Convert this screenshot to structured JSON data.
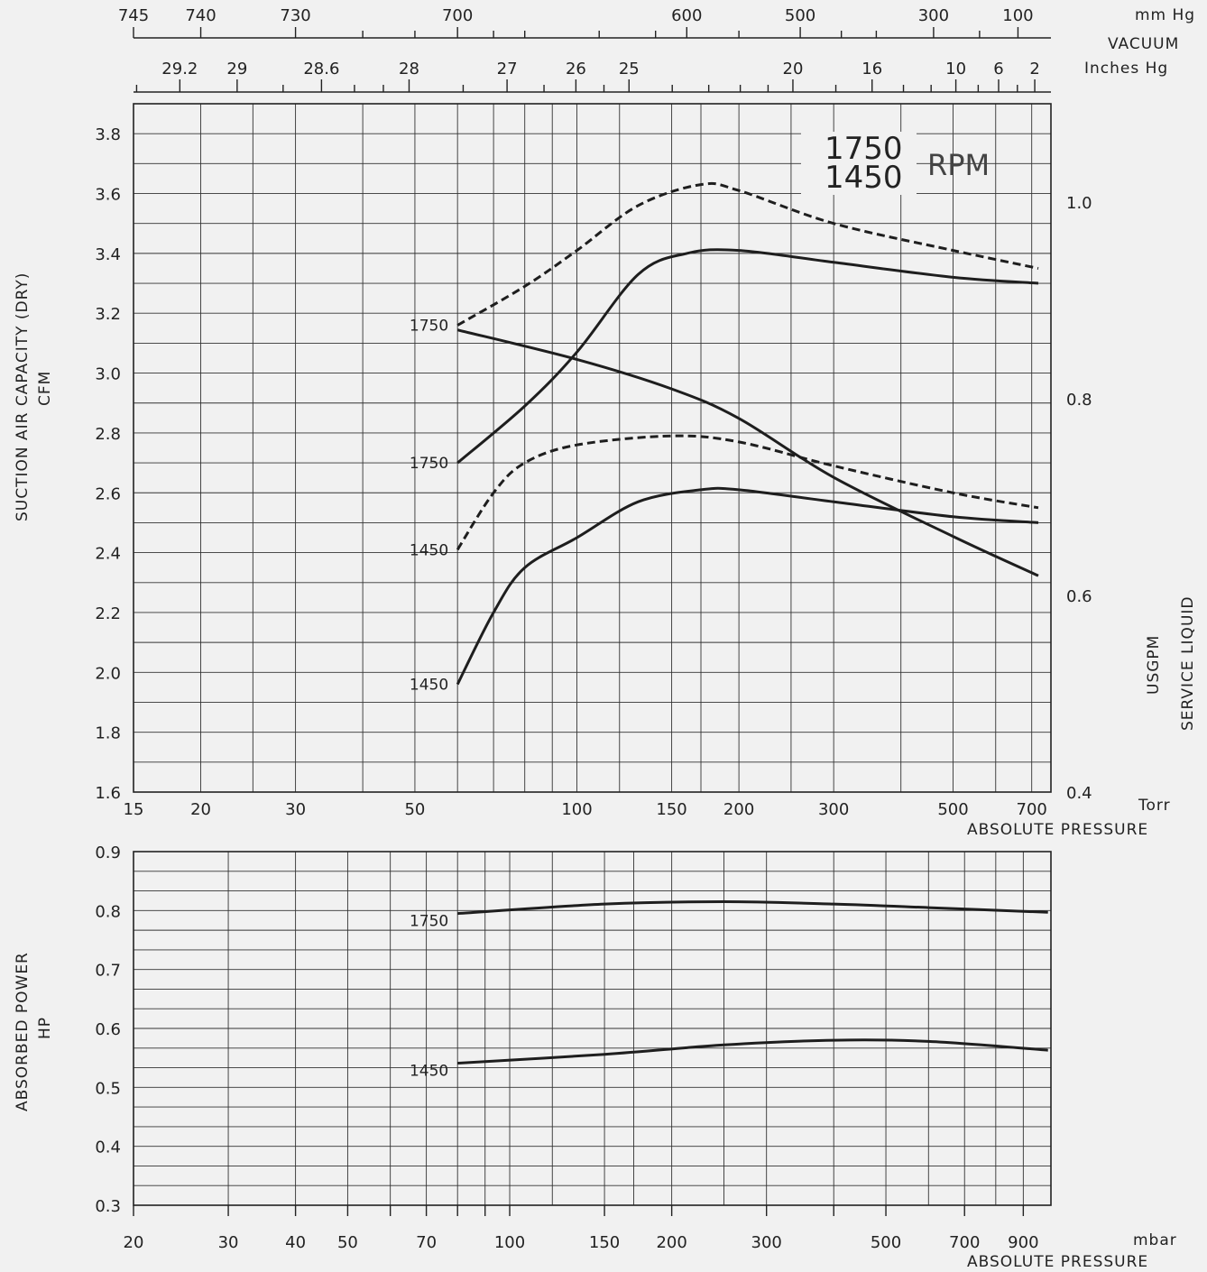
{
  "chart_data": [
    {
      "type": "line",
      "name_panel": "capacity",
      "ylabel": "SUCTION AIR CAPACITY (DRY)",
      "ylabel_unit": "CFM",
      "y_ticks": [
        "1.6",
        "1.8",
        "2.0",
        "2.2",
        "2.4",
        "2.6",
        "2.8",
        "3.0",
        "3.2",
        "3.4",
        "3.6",
        "3.8"
      ],
      "ylim": [
        1.6,
        3.9
      ],
      "xlabel": "ABSOLUTE PRESSURE",
      "xlabel_unit": "Torr",
      "x_scale": "log",
      "x_ticks": [
        "15",
        "20",
        "30",
        "50",
        "100",
        "150",
        "200",
        "300",
        "500",
        "700"
      ],
      "xlim": [
        15,
        760
      ],
      "y2label": "SERVICE LIQUID",
      "y2label_unit": "USGPM",
      "y2_ticks": [
        "0.4",
        "0.6",
        "0.8",
        "1.0"
      ],
      "y2lim": [
        0.4,
        1.1
      ],
      "legend_text": {
        "rpm_a": "1750",
        "rpm_b": "1450",
        "rpm_unit": "RPM"
      },
      "series": [
        {
          "label": "1750",
          "style": "dashed",
          "x": [
            60,
            80,
            100,
            130,
            170,
            200,
            300,
            500,
            720
          ],
          "y": [
            3.16,
            3.29,
            3.41,
            3.56,
            3.63,
            3.61,
            3.5,
            3.41,
            3.35
          ]
        },
        {
          "label": "1750",
          "style": "solid",
          "x": [
            60,
            80,
            100,
            130,
            160,
            200,
            300,
            500,
            720
          ],
          "y": [
            2.7,
            2.89,
            3.07,
            3.33,
            3.4,
            3.41,
            3.37,
            3.32,
            3.3
          ]
        },
        {
          "label": "1450",
          "style": "dashed",
          "x": [
            60,
            70,
            80,
            100,
            150,
            200,
            300,
            500,
            720
          ],
          "y": [
            2.41,
            2.6,
            2.7,
            2.76,
            2.79,
            2.77,
            2.69,
            2.6,
            2.55
          ]
        },
        {
          "label": "1450",
          "style": "solid",
          "x": [
            60,
            70,
            80,
            100,
            130,
            170,
            200,
            300,
            500,
            720
          ],
          "y": [
            1.96,
            2.2,
            2.35,
            2.45,
            2.57,
            2.61,
            2.61,
            2.57,
            2.52,
            2.5
          ]
        },
        {
          "label": "",
          "axis": "y2",
          "style": "solid",
          "x": [
            60,
            100,
            150,
            200,
            300,
            500,
            720
          ],
          "y": [
            0.87,
            0.84,
            0.81,
            0.78,
            0.72,
            0.66,
            0.62
          ]
        }
      ]
    },
    {
      "type": "line",
      "name_panel": "power",
      "ylabel": "ABSORBED POWER",
      "ylabel_unit": "HP",
      "y_ticks": [
        "0.3",
        "0.4",
        "0.5",
        "0.6",
        "0.7",
        "0.8",
        "0.9"
      ],
      "ylim": [
        0.3,
        0.9
      ],
      "xlabel": "ABSOLUTE PRESSURE",
      "xlabel_unit": "mbar",
      "x_scale": "log",
      "x_ticks": [
        "20",
        "30",
        "40",
        "50",
        "70",
        "100",
        "150",
        "200",
        "300",
        "500",
        "700",
        "900"
      ],
      "xlim": [
        20,
        1013
      ],
      "series": [
        {
          "label": "1750",
          "style": "solid",
          "x": [
            80,
            150,
            250,
            400,
            600,
            1000
          ],
          "y": [
            0.795,
            0.811,
            0.815,
            0.811,
            0.805,
            0.797
          ]
        },
        {
          "label": "1450",
          "style": "solid",
          "x": [
            80,
            150,
            250,
            400,
            600,
            1000
          ],
          "y": [
            0.541,
            0.556,
            0.572,
            0.58,
            0.578,
            0.563
          ]
        }
      ]
    }
  ],
  "top_scales": {
    "mmhg_unit": "mm Hg",
    "mmhg_ticks": [
      "745",
      "740",
      "730",
      "700",
      "600",
      "500",
      "300",
      "100"
    ],
    "vacuum_label": "VACUUM",
    "inhg_unit": "Inches Hg",
    "inhg_ticks": [
      "29.2",
      "29",
      "28.6",
      "28",
      "27",
      "26",
      "25",
      "20",
      "16",
      "10",
      "6",
      "2"
    ]
  }
}
